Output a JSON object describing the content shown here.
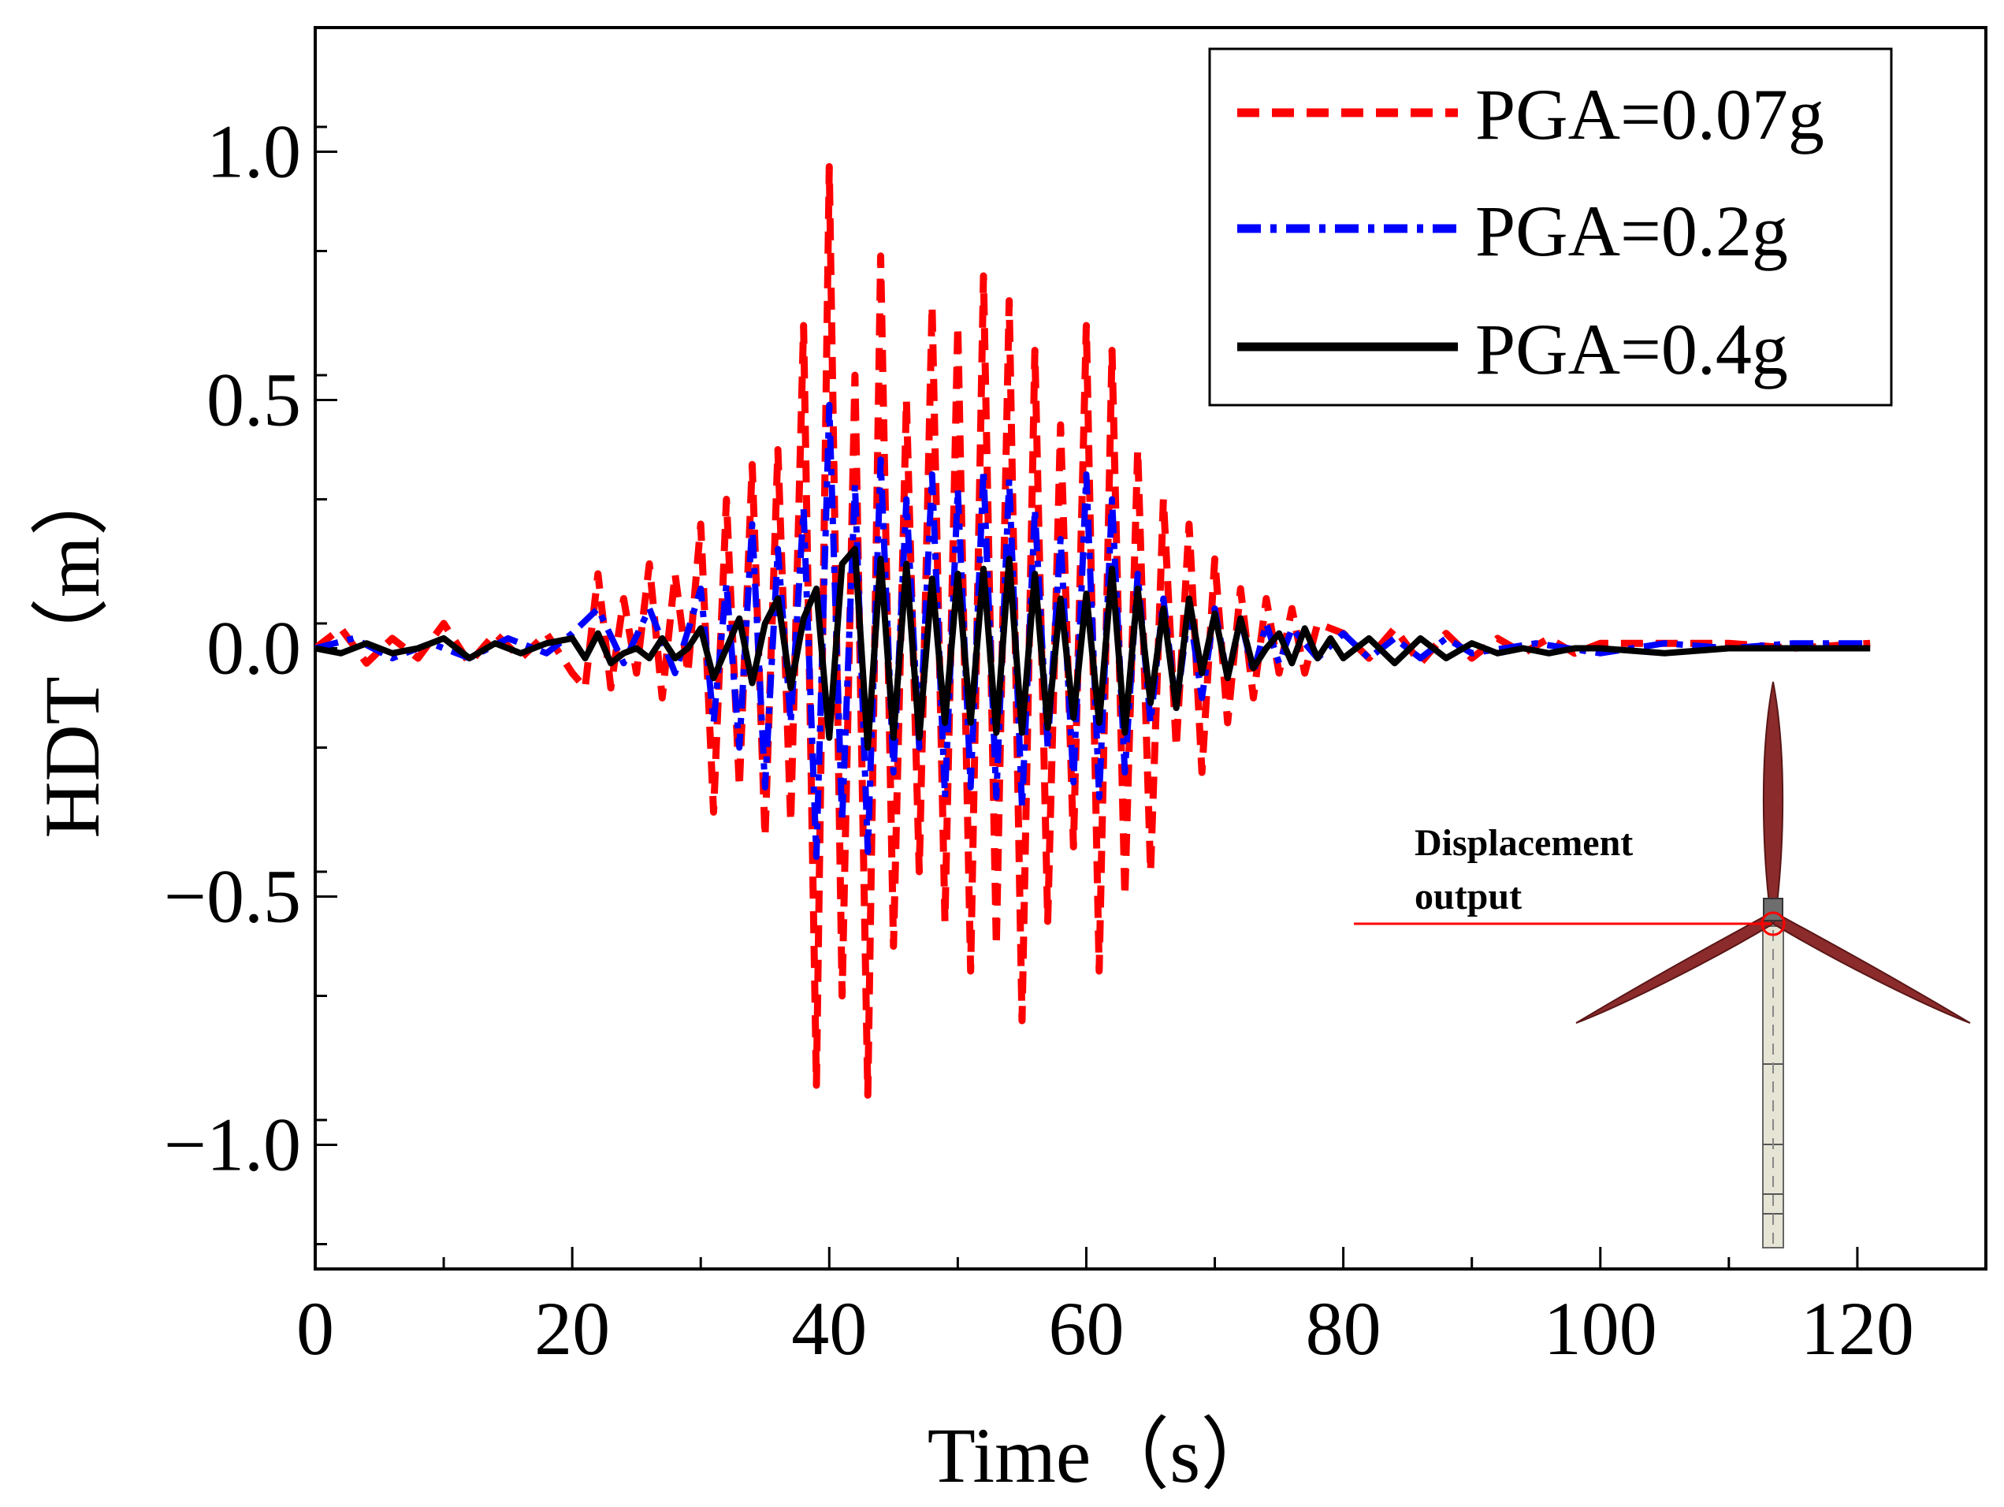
{
  "chart_data": {
    "type": "line",
    "xlabel": "Time（s）",
    "ylabel": "HDT（m）",
    "xlim": [
      0,
      130
    ],
    "ylim": [
      -1.25,
      1.25
    ],
    "xticks": [
      0,
      20,
      40,
      60,
      80,
      100,
      120
    ],
    "xtick_labels": [
      "0",
      "20",
      "40",
      "60",
      "80",
      "100",
      "120"
    ],
    "yticks": [
      -1.0,
      -0.5,
      0.0,
      0.5,
      1.0
    ],
    "ytick_labels": [
      "−1.0",
      "−0.5",
      "0.0",
      "0.5",
      "1.0"
    ],
    "grid": false,
    "legend_position": "top-right",
    "series": [
      {
        "name": "PGA=0.07g",
        "color": "#ff0000",
        "style": "dashed",
        "x": [
          0,
          2,
          4,
          6,
          8,
          10,
          12,
          14,
          16,
          18,
          20,
          21,
          22,
          23,
          24,
          25,
          26,
          27,
          28,
          29,
          30,
          31,
          32,
          33,
          34,
          35,
          36,
          37,
          38,
          39,
          40,
          41,
          42,
          43,
          44,
          45,
          46,
          47,
          48,
          49,
          50,
          51,
          52,
          53,
          54,
          55,
          56,
          57,
          58,
          59,
          60,
          61,
          62,
          63,
          64,
          65,
          66,
          67,
          68,
          69,
          70,
          71,
          72,
          73,
          74,
          75,
          76,
          77,
          78,
          80,
          82,
          84,
          86,
          88,
          90,
          92,
          94,
          96,
          98,
          100,
          105,
          110,
          115,
          121
        ],
        "values": [
          0.0,
          0.04,
          -0.03,
          0.02,
          -0.02,
          0.05,
          -0.03,
          0.03,
          -0.02,
          0.03,
          -0.05,
          -0.08,
          0.15,
          -0.08,
          0.1,
          -0.05,
          0.17,
          -0.1,
          0.15,
          -0.05,
          0.25,
          -0.33,
          0.3,
          -0.28,
          0.37,
          -0.38,
          0.4,
          -0.35,
          0.65,
          -0.88,
          0.97,
          -0.7,
          0.55,
          -0.9,
          0.79,
          -0.6,
          0.5,
          -0.45,
          0.69,
          -0.55,
          0.65,
          -0.65,
          0.75,
          -0.6,
          0.7,
          -0.75,
          0.6,
          -0.55,
          0.45,
          -0.4,
          0.65,
          -0.65,
          0.6,
          -0.5,
          0.4,
          -0.45,
          0.3,
          -0.2,
          0.25,
          -0.25,
          0.18,
          -0.15,
          0.12,
          -0.1,
          0.1,
          -0.05,
          0.08,
          -0.05,
          0.05,
          0.03,
          -0.02,
          0.04,
          -0.03,
          0.03,
          -0.02,
          0.02,
          -0.01,
          0.02,
          -0.01,
          0.01,
          0.01,
          0.01,
          0.0,
          0.01
        ]
      },
      {
        "name": "PGA=0.2g",
        "color": "#0000ff",
        "style": "dashdot",
        "x": [
          0,
          3,
          6,
          9,
          12,
          15,
          18,
          20,
          22,
          24,
          26,
          28,
          30,
          31,
          32,
          33,
          34,
          35,
          36,
          37,
          38,
          39,
          40,
          41,
          42,
          43,
          44,
          45,
          46,
          47,
          48,
          49,
          50,
          51,
          52,
          53,
          54,
          55,
          56,
          57,
          58,
          59,
          60,
          61,
          62,
          63,
          64,
          65,
          66,
          67,
          68,
          69,
          70,
          71,
          72,
          73,
          74,
          75,
          76,
          78,
          80,
          82,
          84,
          86,
          88,
          90,
          95,
          100,
          105,
          110,
          115,
          121
        ],
        "values": [
          0.0,
          0.02,
          -0.02,
          0.01,
          -0.02,
          0.02,
          -0.01,
          0.03,
          0.08,
          -0.03,
          0.08,
          -0.05,
          0.12,
          -0.15,
          0.13,
          -0.2,
          0.25,
          -0.28,
          0.2,
          -0.15,
          0.28,
          -0.42,
          0.49,
          -0.35,
          0.33,
          -0.41,
          0.38,
          -0.25,
          0.3,
          -0.2,
          0.35,
          -0.3,
          0.32,
          -0.28,
          0.36,
          -0.3,
          0.34,
          -0.32,
          0.28,
          -0.2,
          0.22,
          -0.27,
          0.35,
          -0.3,
          0.3,
          -0.25,
          0.15,
          -0.15,
          0.1,
          -0.12,
          0.08,
          -0.1,
          0.08,
          -0.06,
          0.06,
          -0.05,
          0.05,
          -0.03,
          0.04,
          -0.02,
          0.03,
          -0.02,
          0.02,
          -0.02,
          0.02,
          -0.01,
          0.01,
          -0.01,
          0.01,
          0.0,
          0.01,
          0.01
        ]
      },
      {
        "name": "PGA=0.4g",
        "color": "#000000",
        "style": "solid",
        "x": [
          0,
          2,
          4,
          6,
          8,
          10,
          12,
          14,
          16,
          18,
          20,
          21,
          22,
          23,
          24,
          25,
          26,
          27,
          28,
          29,
          30,
          31,
          32,
          33,
          34,
          35,
          36,
          37,
          38,
          39,
          40,
          41,
          42,
          43,
          44,
          45,
          46,
          47,
          48,
          49,
          50,
          51,
          52,
          53,
          54,
          55,
          56,
          57,
          58,
          59,
          60,
          61,
          62,
          63,
          64,
          65,
          66,
          67,
          68,
          69,
          70,
          71,
          72,
          73,
          74,
          75,
          76,
          77,
          78,
          79,
          80,
          82,
          84,
          86,
          88,
          90,
          92,
          94,
          96,
          98,
          100,
          105,
          110,
          115,
          121
        ],
        "values": [
          0.0,
          -0.01,
          0.01,
          -0.01,
          0.0,
          0.02,
          -0.02,
          0.01,
          -0.01,
          0.01,
          0.02,
          -0.02,
          0.03,
          -0.03,
          -0.01,
          0.0,
          -0.02,
          0.02,
          -0.02,
          0.0,
          0.04,
          -0.06,
          0.0,
          0.06,
          -0.07,
          0.05,
          0.1,
          -0.08,
          0.06,
          0.12,
          -0.18,
          0.17,
          0.2,
          -0.2,
          0.18,
          -0.18,
          0.17,
          -0.18,
          0.14,
          -0.15,
          0.15,
          -0.15,
          0.16,
          -0.17,
          0.18,
          -0.17,
          0.15,
          -0.16,
          0.1,
          -0.14,
          0.11,
          -0.15,
          0.16,
          -0.17,
          0.12,
          -0.11,
          0.08,
          -0.12,
          0.1,
          -0.05,
          0.07,
          -0.06,
          0.06,
          -0.04,
          0.0,
          0.03,
          -0.03,
          0.04,
          -0.02,
          0.02,
          -0.02,
          0.02,
          -0.03,
          0.02,
          -0.02,
          0.01,
          -0.01,
          0.0,
          -0.01,
          0.0,
          0.0,
          -0.01,
          0.0,
          0.0,
          0.0
        ]
      }
    ]
  },
  "inset": {
    "annotation_line1": "Displacement",
    "annotation_line2": "output",
    "pointer_color": "#ff0000",
    "blade_color": "#8b2b2b",
    "tower_color": "#e6e4d5"
  }
}
